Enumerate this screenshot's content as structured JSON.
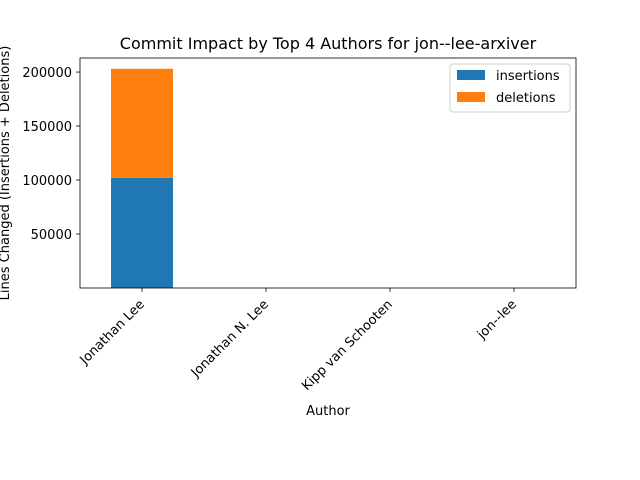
{
  "chart_data": {
    "type": "bar",
    "stacked": true,
    "title": "Commit Impact by Top 4 Authors for jon--lee-arxiver",
    "xlabel": "Author",
    "ylabel": "Lines Changed (Insertions + Deletions)",
    "categories": [
      "Jonathan Lee",
      "Jonathan N. Lee",
      "Kipp van Schooten",
      "jon--lee"
    ],
    "series": [
      {
        "name": "insertions",
        "color": "#1f77b4",
        "values": [
          102000,
          0,
          0,
          0
        ]
      },
      {
        "name": "deletions",
        "color": "#ff7f0e",
        "values": [
          101000,
          0,
          0,
          0
        ]
      }
    ],
    "ylim": [
      0,
      213000
    ],
    "yticks": [
      50000,
      100000,
      150000,
      200000
    ],
    "ytick_labels": [
      "50000",
      "100000",
      "150000",
      "200000"
    ],
    "legend_position": "upper right",
    "grid": false
  }
}
